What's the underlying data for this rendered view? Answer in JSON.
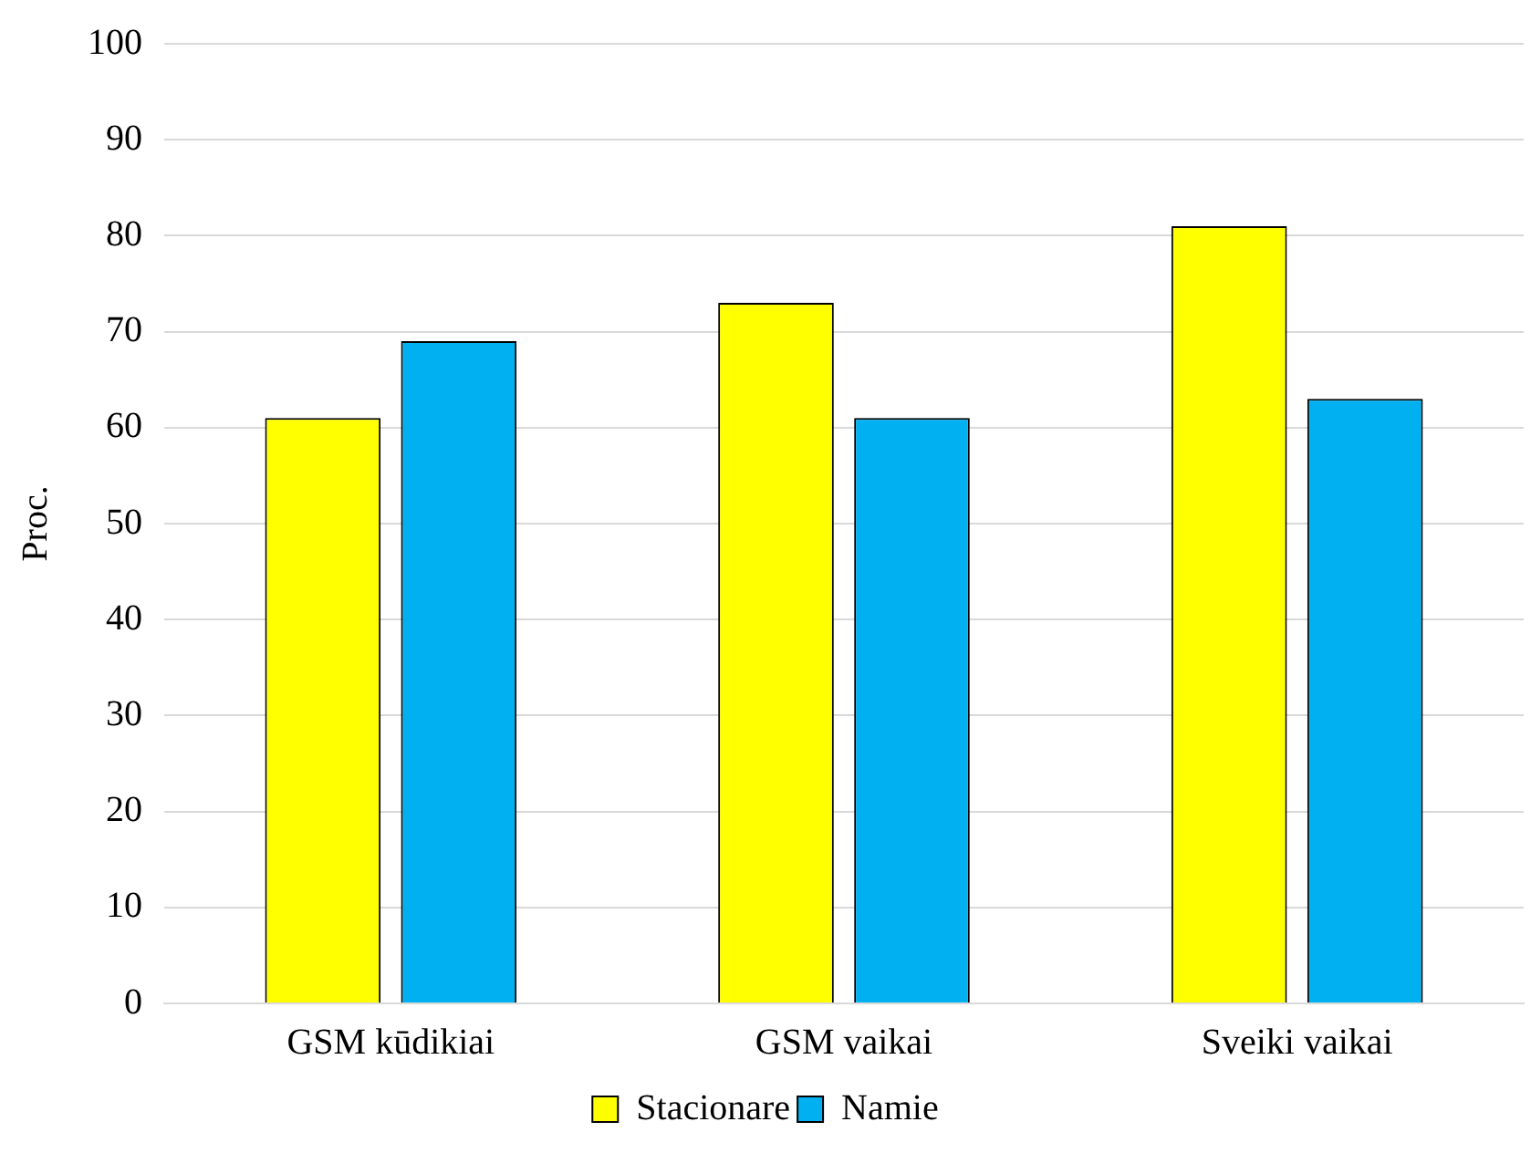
{
  "chart_data": {
    "type": "bar",
    "ylabel": "Proc.",
    "categories": [
      "GSM kūdikiai",
      "GSM vaikai",
      "Sveiki vaikai"
    ],
    "series": [
      {
        "name": "Stacionare",
        "color": "#ffff00",
        "values": [
          61,
          73,
          81
        ]
      },
      {
        "name": "Namie",
        "color": "#00b0f0",
        "values": [
          69,
          61,
          63
        ]
      }
    ],
    "ylim": [
      0,
      100
    ],
    "yticks": [
      0,
      10,
      20,
      30,
      40,
      50,
      60,
      70,
      80,
      90,
      100
    ],
    "grid": "y",
    "legend": "bottom"
  }
}
